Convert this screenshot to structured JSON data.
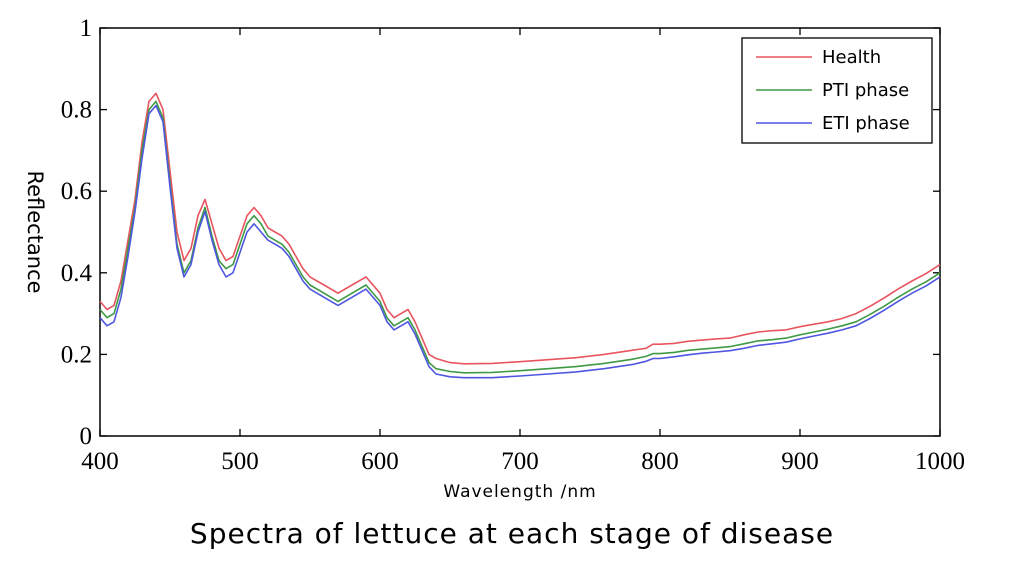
{
  "chart_data": {
    "type": "line",
    "title": "Spectra of lettuce at each stage of disease",
    "xlabel": "Wavelength /nm",
    "ylabel": "Reflectance",
    "xlim": [
      400,
      1000
    ],
    "ylim": [
      0,
      1
    ],
    "xticks": [
      400,
      500,
      600,
      700,
      800,
      900,
      1000
    ],
    "yticks": [
      0,
      0.2,
      0.4,
      0.6,
      0.8,
      1
    ],
    "ytick_labels": [
      "0",
      "0.2",
      "0.4",
      "0.6",
      "0.8",
      "1"
    ],
    "legend_position": "top-right",
    "grid": false,
    "x": [
      400,
      405,
      410,
      415,
      420,
      425,
      430,
      435,
      440,
      445,
      450,
      455,
      460,
      465,
      470,
      475,
      480,
      485,
      490,
      495,
      500,
      505,
      510,
      515,
      520,
      525,
      530,
      535,
      540,
      545,
      550,
      560,
      570,
      580,
      590,
      600,
      605,
      610,
      615,
      620,
      625,
      630,
      635,
      640,
      650,
      660,
      680,
      700,
      720,
      740,
      760,
      780,
      790,
      795,
      800,
      810,
      820,
      830,
      840,
      850,
      860,
      870,
      880,
      890,
      900,
      910,
      920,
      930,
      940,
      950,
      960,
      970,
      980,
      990,
      1000
    ],
    "series": [
      {
        "name": "Health",
        "color": "#e8555f",
        "values": [
          0.33,
          0.31,
          0.32,
          0.38,
          0.48,
          0.58,
          0.72,
          0.82,
          0.84,
          0.8,
          0.65,
          0.5,
          0.43,
          0.46,
          0.54,
          0.58,
          0.52,
          0.46,
          0.43,
          0.44,
          0.49,
          0.54,
          0.56,
          0.54,
          0.51,
          0.5,
          0.49,
          0.47,
          0.44,
          0.41,
          0.39,
          0.37,
          0.35,
          0.37,
          0.39,
          0.35,
          0.31,
          0.29,
          0.3,
          0.31,
          0.28,
          0.24,
          0.2,
          0.19,
          0.18,
          0.177,
          0.178,
          0.182,
          0.187,
          0.192,
          0.2,
          0.21,
          0.215,
          0.225,
          0.225,
          0.227,
          0.232,
          0.235,
          0.238,
          0.24,
          0.248,
          0.255,
          0.258,
          0.26,
          0.268,
          0.274,
          0.28,
          0.288,
          0.3,
          0.318,
          0.338,
          0.36,
          0.38,
          0.398,
          0.42
        ]
      },
      {
        "name": "PTI phase",
        "color": "#3f9a45",
        "values": [
          0.31,
          0.29,
          0.3,
          0.36,
          0.46,
          0.56,
          0.7,
          0.8,
          0.82,
          0.78,
          0.62,
          0.47,
          0.4,
          0.43,
          0.51,
          0.56,
          0.49,
          0.43,
          0.41,
          0.42,
          0.47,
          0.52,
          0.54,
          0.52,
          0.49,
          0.48,
          0.47,
          0.45,
          0.42,
          0.39,
          0.37,
          0.35,
          0.33,
          0.35,
          0.37,
          0.33,
          0.29,
          0.27,
          0.28,
          0.29,
          0.26,
          0.22,
          0.18,
          0.165,
          0.158,
          0.155,
          0.156,
          0.16,
          0.165,
          0.17,
          0.178,
          0.188,
          0.195,
          0.202,
          0.202,
          0.205,
          0.21,
          0.213,
          0.216,
          0.219,
          0.226,
          0.233,
          0.236,
          0.24,
          0.248,
          0.255,
          0.262,
          0.27,
          0.28,
          0.298,
          0.318,
          0.34,
          0.36,
          0.378,
          0.4
        ]
      },
      {
        "name": "ETI phase",
        "color": "#4f56e0",
        "values": [
          0.29,
          0.27,
          0.28,
          0.34,
          0.44,
          0.55,
          0.68,
          0.79,
          0.81,
          0.77,
          0.61,
          0.46,
          0.39,
          0.42,
          0.5,
          0.55,
          0.48,
          0.42,
          0.39,
          0.4,
          0.45,
          0.5,
          0.52,
          0.5,
          0.48,
          0.47,
          0.46,
          0.44,
          0.41,
          0.38,
          0.36,
          0.34,
          0.32,
          0.34,
          0.36,
          0.32,
          0.28,
          0.26,
          0.27,
          0.28,
          0.25,
          0.21,
          0.17,
          0.152,
          0.145,
          0.143,
          0.143,
          0.147,
          0.152,
          0.157,
          0.165,
          0.175,
          0.183,
          0.19,
          0.19,
          0.194,
          0.199,
          0.203,
          0.206,
          0.209,
          0.215,
          0.222,
          0.226,
          0.23,
          0.238,
          0.245,
          0.252,
          0.26,
          0.27,
          0.288,
          0.308,
          0.33,
          0.35,
          0.368,
          0.39
        ]
      }
    ]
  }
}
